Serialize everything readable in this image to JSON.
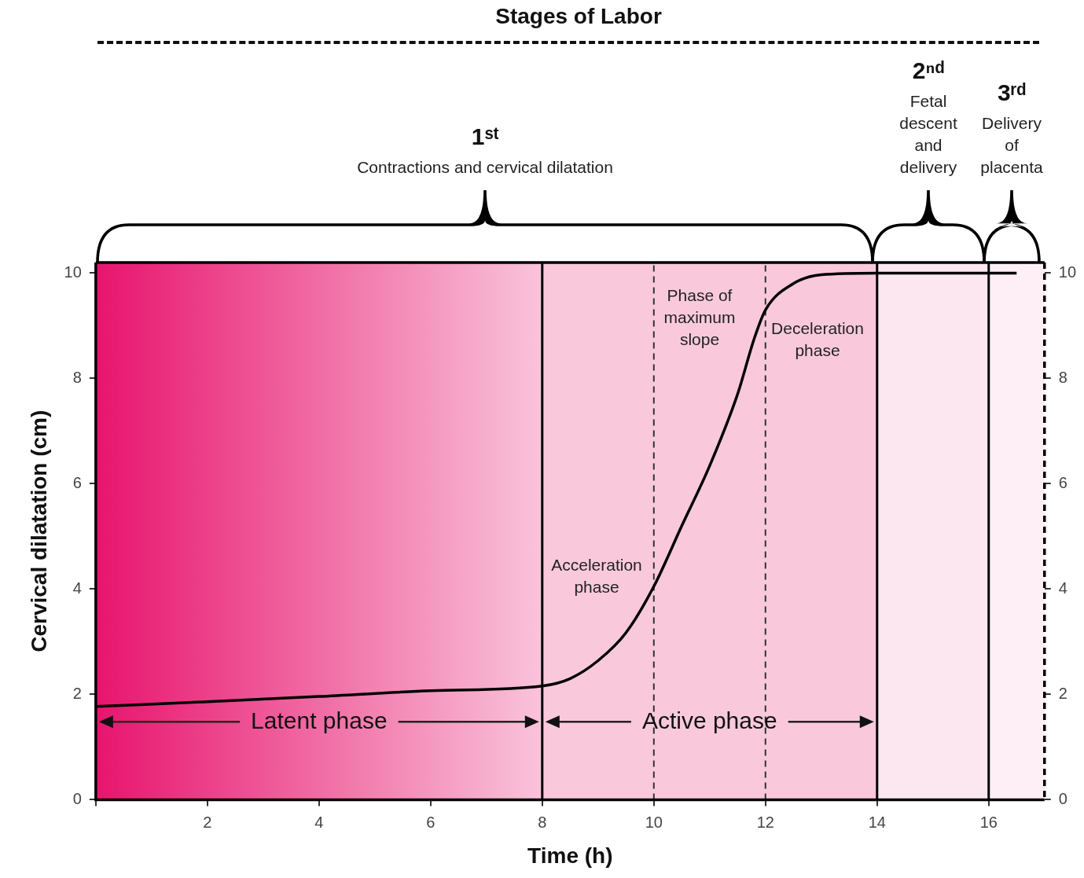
{
  "chart_data": {
    "type": "line",
    "title": "Stages of Labor",
    "xlabel": "Time (h)",
    "ylabel": "Cervical dilatation (cm)",
    "x": [
      0,
      2,
      4,
      6,
      8,
      8.5,
      9,
      9.5,
      10,
      10.5,
      11,
      11.5,
      11.8,
      12,
      12.5,
      13,
      14,
      16.5
    ],
    "series": [
      {
        "color": "#000000",
        "values": [
          1.77,
          1.86,
          1.96,
          2.07,
          2.16,
          2.3,
          2.64,
          3.17,
          4.05,
          5.2,
          6.34,
          7.7,
          8.76,
          9.3,
          9.8,
          9.97,
          10,
          10
        ]
      }
    ],
    "xlim": [
      0,
      17
    ],
    "xticks": [
      {
        "value": 0,
        "label": null
      },
      2,
      4,
      6,
      8,
      10,
      12,
      14,
      16
    ],
    "ylim": [
      0,
      10.2
    ],
    "yticks": [
      0,
      2,
      4,
      6,
      8,
      10
    ],
    "y2lim": [
      0,
      10.2
    ],
    "y2ticks": [
      0,
      2,
      4,
      6,
      8,
      10
    ],
    "marker": "none",
    "line_style": "solid",
    "grid": false,
    "legend": false,
    "bands": [
      {
        "axis": "x",
        "from": 0,
        "to": 8,
        "label": "Latent phase",
        "color": "#e8146e"
      },
      {
        "axis": "x",
        "from": 8,
        "to": 14,
        "label": "Active phase",
        "color": "#f9c9db"
      },
      {
        "axis": "x",
        "from": 14,
        "to": 16,
        "color": "#fce6ef"
      },
      {
        "axis": "x",
        "from": 16,
        "to": 17,
        "color": "#fdeff5"
      }
    ],
    "ref_lines": [
      {
        "axis": "x",
        "value": 8,
        "color": "#000000",
        "line_style": "solid"
      },
      {
        "axis": "x",
        "value": 10,
        "color": "#333333",
        "line_style": "dashed"
      },
      {
        "axis": "x",
        "value": 12,
        "color": "#333333",
        "line_style": "dashed"
      },
      {
        "axis": "x",
        "value": 14,
        "color": "#000000",
        "line_style": "solid"
      },
      {
        "axis": "x",
        "value": 16,
        "color": "#000000",
        "line_style": "solid"
      }
    ],
    "annotations": [
      "Acceleration phase",
      "Phase of maximum slope",
      "Deceleration phase",
      "1ˢᵗ\nContractions and cervical dilatation",
      "2ⁿᵈ\nFetal descent and delivery",
      "3ʳᵈ\nDelivery of placenta"
    ]
  }
}
